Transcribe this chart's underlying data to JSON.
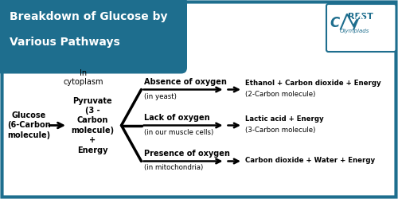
{
  "title_line1": "Breakdown of Glucose by",
  "title_line2": "Various Pathways",
  "title_bg_color": "#1e6e8e",
  "title_text_color": "#ffffff",
  "bg_color": "#ffffff",
  "border_color": "#1e6e8e",
  "arrow_color": "#000000",
  "text_color": "#000000",
  "glucose_label": "Glucose\n(6-Carbon\nmolecule)",
  "cytoplasm_label": "In\ncytoplasm",
  "pyruvate_label": "Pyruvate\n(3 -\nCarbon\nmolecule)\n+\nEnergy",
  "pathway1_condition": "Absence of oxygen",
  "pathway1_location": "(in yeast)",
  "pathway1_result_line1": "Ethanol + Carbon dioxide + Energy",
  "pathway1_result_line2": "(2-Carbon molecule)",
  "pathway2_condition": "Lack of oxygen",
  "pathway2_location": "(in our muscle cells)",
  "pathway2_result_line1": "Lactic acid + Energy",
  "pathway2_result_line2": "(3-Carbon molecule)",
  "pathway3_condition": "Presence of oxygen",
  "pathway3_location": "(in mitochondria)",
  "pathway3_result": "Carbon dioxide + Water + Energy",
  "font_size_title": 10,
  "font_size_body": 7,
  "font_size_small": 6.2
}
